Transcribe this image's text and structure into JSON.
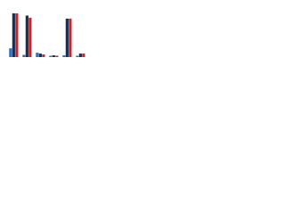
{
  "chart_data": {
    "type": "bar",
    "categories": [
      null,
      null,
      null,
      null,
      null,
      null
    ],
    "series": [
      {
        "color": "#2f6fbf",
        "values": [
          20,
          5,
          10,
          3,
          4,
          3
        ]
      },
      {
        "color": "#1c2d4f",
        "values": [
          100,
          95,
          8,
          4,
          88,
          8
        ]
      },
      {
        "color": "#c0282d",
        "values": [
          100,
          90,
          6,
          3,
          88,
          8
        ]
      }
    ],
    "ylim": [
      0,
      100
    ]
  }
}
